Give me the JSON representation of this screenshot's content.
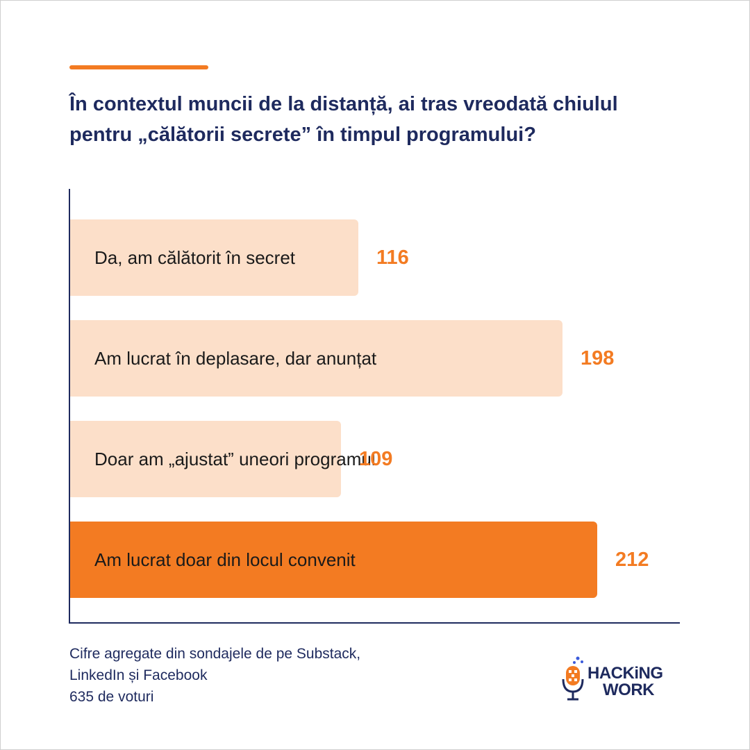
{
  "title": {
    "line1": "În contextul muncii de la distanță, ai tras vreodată chiulul",
    "line2": "pentru „călătorii secrete” în timpul programului?"
  },
  "chart_data": {
    "type": "bar",
    "orientation": "horizontal",
    "title": "În contextul muncii de la distanță, ai tras vreodată chiulul pentru „călătorii secrete” în timpul programului?",
    "categories": [
      "Da, am călătorit în secret",
      "Am lucrat în deplasare, dar anunțat",
      "Doar am „ajustat” uneori programul",
      "Am lucrat doar din locul convenit"
    ],
    "values": [
      116,
      198,
      109,
      212
    ],
    "bar_colors": [
      "#fcdfc9",
      "#fcdfc9",
      "#fcdfc9",
      "#f37b22"
    ],
    "value_color": "#f37b22",
    "xlim": [
      0,
      240
    ],
    "grid": false,
    "legend": "none"
  },
  "footnote": {
    "line1": "Cifre agregate din sondajele de pe Substack,",
    "line2": "LinkedIn și Facebook",
    "line3": "635 de voturi"
  },
  "logo": {
    "line1": "HACKiNG",
    "line2": "WORK",
    "icon": "microphone-logo-icon"
  },
  "colors": {
    "accent": "#f37b22",
    "bar_light": "#fcdfc9",
    "text_dark": "#1e2a5e"
  }
}
